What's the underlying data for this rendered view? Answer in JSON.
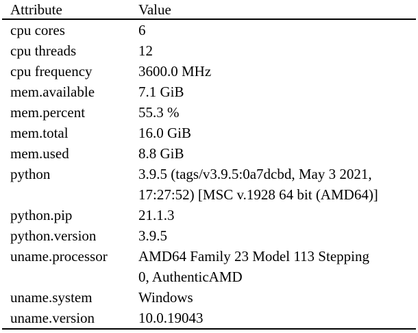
{
  "table": {
    "columns": [
      "Attribute",
      "Value"
    ],
    "rows": [
      {
        "attribute": "cpu cores",
        "value": "6"
      },
      {
        "attribute": "cpu threads",
        "value": "12"
      },
      {
        "attribute": "cpu frequency",
        "value": "3600.0 MHz"
      },
      {
        "attribute": "mem.available",
        "value": "7.1 GiB"
      },
      {
        "attribute": "mem.percent",
        "value": "55.3 %"
      },
      {
        "attribute": "mem.total",
        "value": "16.0 GiB"
      },
      {
        "attribute": "mem.used",
        "value": "8.8 GiB"
      },
      {
        "attribute": "python",
        "value": "3.9.5 (tags/v3.9.5:0a7dcbd, May 3 2021,\n17:27:52) [MSC v.1928 64 bit (AMD64)]"
      },
      {
        "attribute": "python.pip",
        "value": "21.1.3"
      },
      {
        "attribute": "python.version",
        "value": "3.9.5"
      },
      {
        "attribute": "uname.processor",
        "value": "AMD64 Family 23 Model 113 Stepping\n0, AuthenticAMD"
      },
      {
        "attribute": "uname.system",
        "value": "Windows"
      },
      {
        "attribute": "uname.version",
        "value": "10.0.19043"
      }
    ],
    "text_color": "#000000",
    "rule_color": "#000000"
  }
}
